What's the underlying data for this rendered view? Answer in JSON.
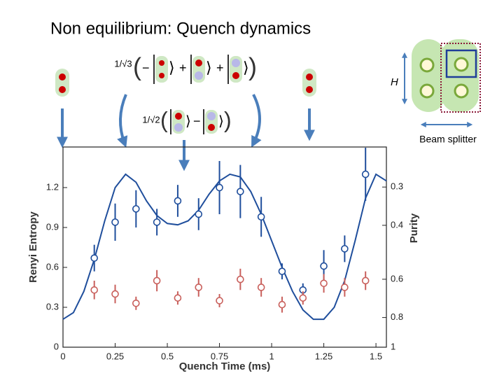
{
  "title": "Non equilibrium: Quench dynamics",
  "annotations": {
    "coef_top": "1/√3",
    "coef_mid": "1/√2",
    "hamiltonian": "H",
    "beam_splitter": "Beam splitter"
  },
  "chart_data": {
    "type": "scatter",
    "xlabel": "Quench Time (ms)",
    "ylabel": "Renyi Entropy",
    "y2label": "Purity",
    "xlim": [
      0,
      1.55
    ],
    "ylim": [
      0,
      1.505
    ],
    "xticks": [
      0,
      0.25,
      0.5,
      0.75,
      1,
      1.25,
      1.5
    ],
    "yticks": [
      0,
      0.3,
      0.6,
      0.9,
      1.2
    ],
    "y2scale": "negative-log",
    "y2lim": [
      1,
      0.222
    ],
    "y2ticks": [
      0.3,
      0.4,
      0.6,
      0.8,
      1
    ],
    "series": [
      {
        "color": "#1f4e9c",
        "x": [
          0.15,
          0.25,
          0.35,
          0.45,
          0.55,
          0.65,
          0.75,
          0.85,
          0.95,
          1.05,
          1.15,
          1.25,
          1.35,
          1.45
        ],
        "values": [
          0.67,
          0.94,
          1.04,
          0.94,
          1.1,
          1.0,
          1.2,
          1.17,
          0.98,
          0.57,
          0.43,
          0.61,
          0.74,
          1.3
        ],
        "errors": [
          0.1,
          0.14,
          0.14,
          0.1,
          0.12,
          0.12,
          0.2,
          0.2,
          0.15,
          0.06,
          0.05,
          0.12,
          0.1,
          0.2
        ]
      },
      {
        "color": "#c9605c",
        "x": [
          0.15,
          0.25,
          0.35,
          0.45,
          0.55,
          0.65,
          0.75,
          0.85,
          0.95,
          1.05,
          1.15,
          1.25,
          1.35,
          1.45
        ],
        "values": [
          0.43,
          0.4,
          0.33,
          0.5,
          0.37,
          0.45,
          0.35,
          0.51,
          0.45,
          0.32,
          0.37,
          0.48,
          0.45,
          0.5
        ],
        "errors": [
          0.07,
          0.07,
          0.05,
          0.08,
          0.05,
          0.07,
          0.05,
          0.08,
          0.07,
          0.06,
          0.05,
          0.07,
          0.07,
          0.07
        ]
      }
    ],
    "fit": {
      "color": "#1f4e9c",
      "x": [
        0,
        0.05,
        0.1,
        0.15,
        0.2,
        0.25,
        0.3,
        0.35,
        0.4,
        0.45,
        0.5,
        0.55,
        0.6,
        0.65,
        0.7,
        0.75,
        0.8,
        0.85,
        0.9,
        0.95,
        1.0,
        1.05,
        1.1,
        1.15,
        1.2,
        1.25,
        1.3,
        1.35,
        1.4,
        1.45,
        1.5,
        1.55
      ],
      "values": [
        0.21,
        0.26,
        0.42,
        0.66,
        0.95,
        1.2,
        1.3,
        1.24,
        1.1,
        0.99,
        0.93,
        0.92,
        0.95,
        1.03,
        1.15,
        1.25,
        1.3,
        1.28,
        1.17,
        1.0,
        0.8,
        0.6,
        0.42,
        0.28,
        0.21,
        0.21,
        0.3,
        0.5,
        0.8,
        1.12,
        1.3,
        1.25
      ]
    }
  }
}
